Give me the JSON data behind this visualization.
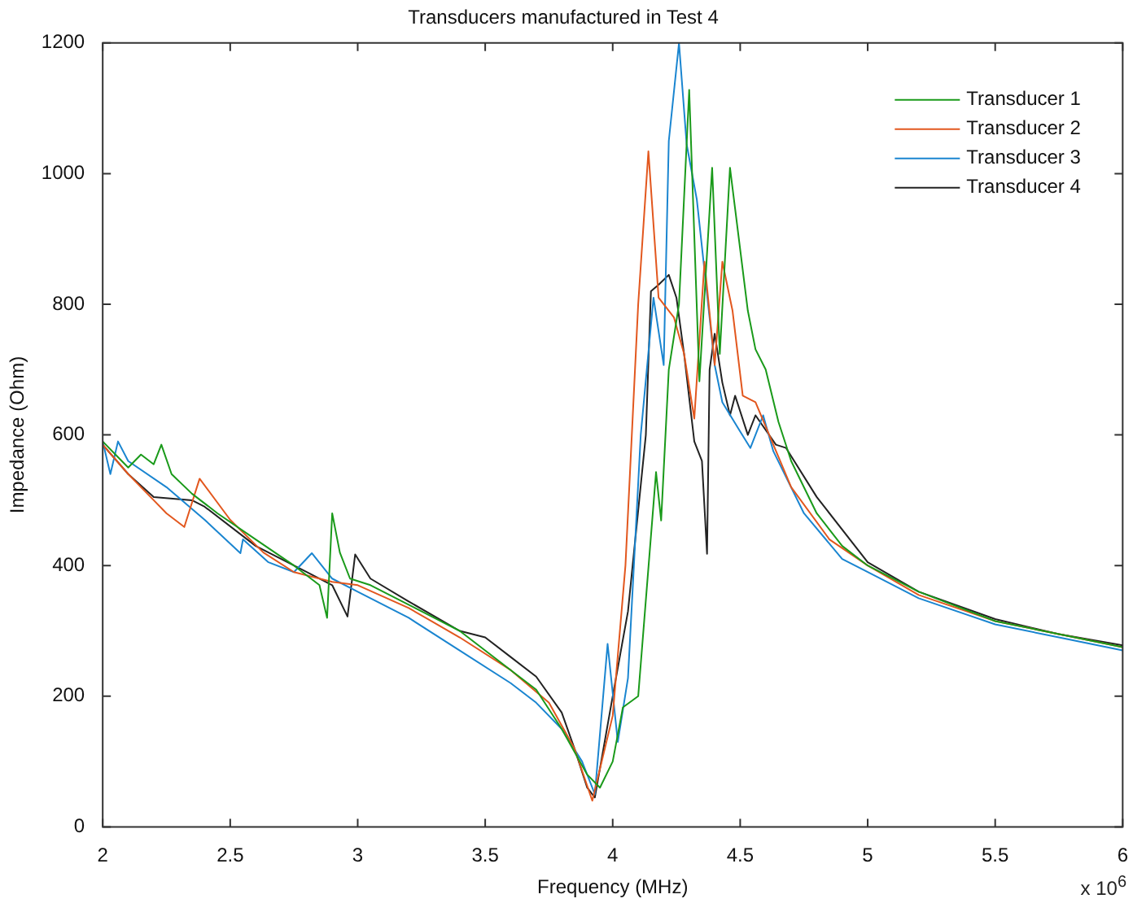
{
  "chart_data": {
    "type": "line",
    "title": "Transducers manufactured in Test 4",
    "xlabel": "Frequency (MHz)",
    "ylabel": "Impedance (Ohm)",
    "annotations": [
      "x 10$^{6}$"
    ],
    "xlim": [
      2,
      6
    ],
    "xticks": [
      2,
      2.5,
      3,
      3.5,
      4,
      4.5,
      5,
      5.5,
      6
    ],
    "ylim": [
      0,
      1200
    ],
    "yticks": [
      0,
      200,
      400,
      600,
      800,
      1000,
      1200
    ],
    "grid": false,
    "legend": "top right",
    "marker": "none",
    "line_style": "solid",
    "series": [
      {
        "name": "Transducer 1",
        "color": "#1a9a1a",
        "x": [
          2.0,
          2.05,
          2.1,
          2.15,
          2.2,
          2.23,
          2.27,
          2.35,
          2.45,
          2.6,
          2.75,
          2.85,
          2.88,
          2.9,
          2.93,
          2.97,
          3.05,
          3.2,
          3.4,
          3.6,
          3.7,
          3.8,
          3.9,
          3.95,
          4.0,
          4.04,
          4.1,
          4.17,
          4.19,
          4.22,
          4.26,
          4.3,
          4.34,
          4.39,
          4.42,
          4.46,
          4.53,
          4.56,
          4.6,
          4.65,
          4.7,
          4.8,
          4.9,
          5.0,
          5.2,
          5.5,
          5.75,
          6.0
        ],
        "values": [
          590,
          570,
          550,
          570,
          555,
          585,
          540,
          510,
          480,
          440,
          400,
          370,
          320,
          480,
          420,
          380,
          370,
          340,
          300,
          240,
          210,
          150,
          80,
          60,
          100,
          183,
          200,
          543,
          469,
          700,
          800,
          1128,
          682,
          1009,
          724,
          1009,
          790,
          731,
          700,
          620,
          560,
          480,
          430,
          400,
          360,
          315,
          295,
          275
        ]
      },
      {
        "name": "Transducer 2",
        "color": "#e2571e",
        "x": [
          2.0,
          2.1,
          2.2,
          2.25,
          2.32,
          2.38,
          2.5,
          2.63,
          2.75,
          2.9,
          3.0,
          3.2,
          3.4,
          3.6,
          3.75,
          3.85,
          3.92,
          4.0,
          4.05,
          4.1,
          4.14,
          4.18,
          4.24,
          4.28,
          4.32,
          4.36,
          4.4,
          4.43,
          4.47,
          4.51,
          4.56,
          4.7,
          4.85,
          5.0,
          5.2,
          5.5,
          5.75,
          6.0
        ],
        "values": [
          585,
          540,
          500,
          480,
          459,
          533,
          470,
          420,
          390,
          375,
          370,
          335,
          290,
          240,
          190,
          120,
          40,
          170,
          400,
          800,
          1034,
          810,
          780,
          724,
          625,
          865,
          707,
          865,
          790,
          660,
          650,
          520,
          440,
          400,
          355,
          315,
          295,
          275
        ]
      },
      {
        "name": "Transducer 3",
        "color": "#1a85d0",
        "x": [
          2.0,
          2.03,
          2.06,
          2.1,
          2.25,
          2.4,
          2.54,
          2.55,
          2.65,
          2.75,
          2.82,
          2.9,
          3.0,
          3.2,
          3.4,
          3.6,
          3.7,
          3.8,
          3.88,
          3.93,
          3.98,
          4.02,
          4.06,
          4.11,
          4.16,
          4.2,
          4.22,
          4.26,
          4.29,
          4.33,
          4.4,
          4.43,
          4.5,
          4.54,
          4.59,
          4.63,
          4.75,
          4.9,
          5.0,
          5.2,
          5.5,
          5.75,
          6.0
        ],
        "values": [
          590,
          540,
          590,
          560,
          520,
          470,
          419,
          440,
          405,
          390,
          419,
          380,
          360,
          320,
          270,
          220,
          190,
          150,
          100,
          50,
          280,
          130,
          228,
          600,
          810,
          707,
          1050,
          1200,
          1045,
          960,
          707,
          650,
          605,
          580,
          630,
          575,
          480,
          410,
          390,
          350,
          310,
          290,
          270
        ]
      },
      {
        "name": "Transducer 4",
        "color": "#222222",
        "x": [
          2.0,
          2.1,
          2.2,
          2.35,
          2.4,
          2.6,
          2.8,
          2.9,
          2.96,
          2.99,
          3.05,
          3.2,
          3.4,
          3.5,
          3.6,
          3.7,
          3.8,
          3.85,
          3.9,
          3.93,
          4.0,
          4.06,
          4.13,
          4.15,
          4.18,
          4.22,
          4.25,
          4.28,
          4.32,
          4.35,
          4.37,
          4.38,
          4.4,
          4.43,
          4.46,
          4.48,
          4.53,
          4.56,
          4.64,
          4.68,
          4.8,
          4.84,
          5.0,
          5.2,
          5.5,
          5.75,
          6.0
        ],
        "values": [
          585,
          540,
          505,
          500,
          490,
          430,
          390,
          370,
          322,
          417,
          380,
          345,
          300,
          290,
          260,
          230,
          175,
          120,
          60,
          45,
          200,
          330,
          600,
          820,
          830,
          845,
          810,
          724,
          590,
          560,
          418,
          700,
          755,
          680,
          630,
          660,
          600,
          630,
          585,
          580,
          505,
          485,
          405,
          360,
          318,
          295,
          278
        ]
      }
    ]
  }
}
